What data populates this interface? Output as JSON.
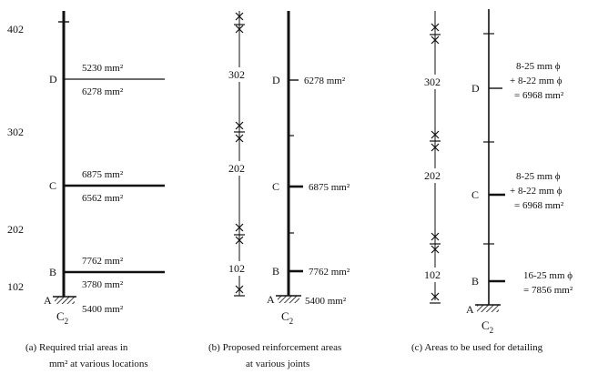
{
  "panel_a": {
    "level_top": "402",
    "level_302": "302",
    "level_202": "202",
    "level_102": "102",
    "joint_d": "D",
    "joint_c": "C",
    "joint_b": "B",
    "joint_a": "A",
    "support_label": "C",
    "support_sub": "2",
    "d_above": "5230 mm²",
    "d_below": "6278 mm²",
    "c_above": "6875 mm²",
    "c_below": "6562 mm²",
    "b_above": "7762 mm²",
    "b_below": "3780 mm²",
    "a_value": "5400 mm²",
    "caption_line1": "(a) Required trial areas in",
    "caption_line2": "mm² at various locations"
  },
  "panel_b": {
    "seg_302": "302",
    "seg_202": "202",
    "seg_102": "102",
    "joint_d": "D",
    "joint_c": "C",
    "joint_b": "B",
    "joint_a": "A",
    "support_label": "C",
    "support_sub": "2",
    "d_value": "6278 mm²",
    "c_value": "6875 mm²",
    "b_value": "7762 mm²",
    "a_value": "5400 mm²",
    "caption_line1": "(b) Proposed reinforcement areas",
    "caption_line2": "at various joints"
  },
  "panel_c": {
    "seg_302": "302",
    "seg_202": "202",
    "seg_102": "102",
    "joint_d": "D",
    "joint_c": "C",
    "joint_b": "B",
    "joint_a": "A",
    "support_label": "C",
    "support_sub": "2",
    "d_line1": "8-25 mm ϕ",
    "d_line2": "+ 8-22 mm ϕ",
    "d_line3": "= 6968 mm²",
    "c_line1": "8-25 mm ϕ",
    "c_line2": "+ 8-22 mm ϕ",
    "c_line3": "= 6968 mm²",
    "b_line1": "16-25 mm ϕ",
    "b_line2": "= 7856 mm²",
    "caption": "(c) Areas to be used for detailing"
  }
}
